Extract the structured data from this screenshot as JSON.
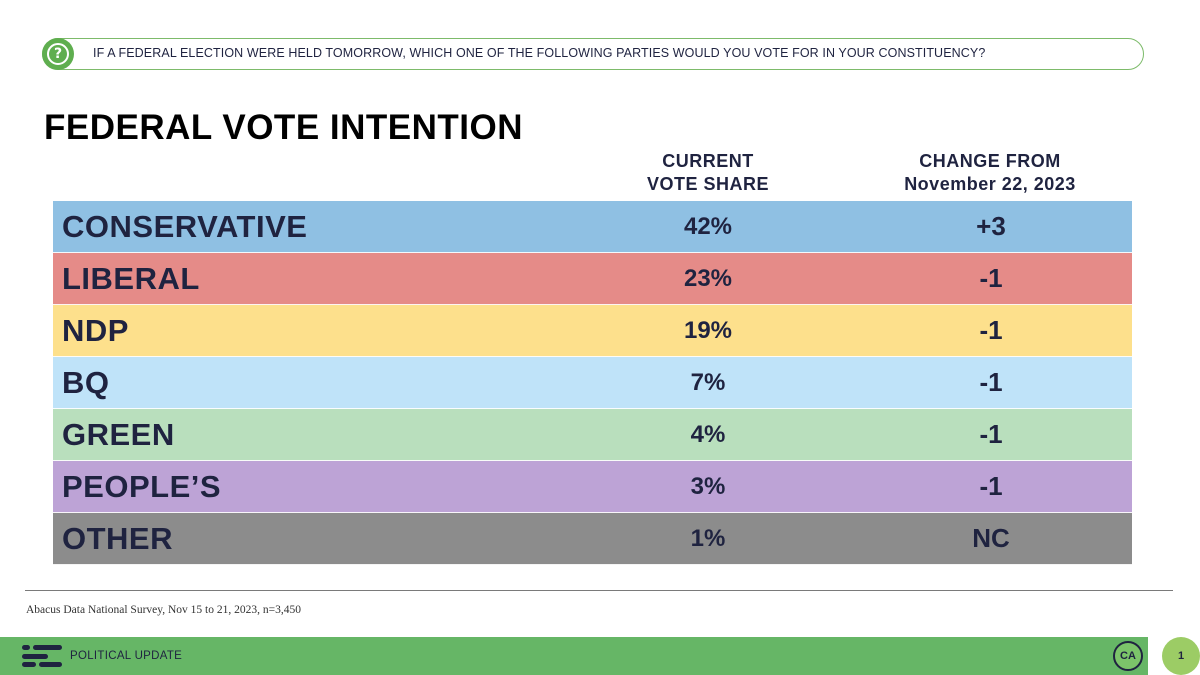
{
  "question": {
    "icon": "question-mark-icon",
    "text": "IF A FEDERAL ELECTION WERE HELD TOMORROW, WHICH ONE OF THE FOLLOWING PARTIES WOULD YOU VOTE FOR IN YOUR CONSTITUENCY?"
  },
  "title": "FEDERAL VOTE INTENTION",
  "columns": {
    "share_line1": "CURRENT",
    "share_line2": "VOTE SHARE",
    "change_line1": "CHANGE FROM",
    "change_line2": "November 22, 2023"
  },
  "chart_data": {
    "type": "table",
    "title": "FEDERAL VOTE INTENTION",
    "columns": [
      "CURRENT VOTE SHARE",
      "CHANGE FROM November 22, 2023"
    ],
    "rows": [
      {
        "party": "CONSERVATIVE",
        "share": "42%",
        "change": "+3",
        "color": "#8fc0e3"
      },
      {
        "party": "LIBERAL",
        "share": "23%",
        "change": "-1",
        "color": "#e58b88"
      },
      {
        "party": "NDP",
        "share": "19%",
        "change": "-1",
        "color": "#fde08c"
      },
      {
        "party": "BQ",
        "share": "7%",
        "change": "-1",
        "color": "#bfe3f9"
      },
      {
        "party": "GREEN",
        "share": "4%",
        "change": "-1",
        "color": "#b9dfbd"
      },
      {
        "party": "PEOPLE’S",
        "share": "3%",
        "change": "-1",
        "color": "#bda3d6"
      },
      {
        "party": "OTHER",
        "share": "1%",
        "change": "NC",
        "color": "#8c8c8c"
      }
    ]
  },
  "source": "Abacus Data National Survey, Nov 15 to 21, 2023, n=3,450",
  "footer": {
    "logo": "abacus-logo-icon",
    "label": "POLITICAL UPDATE",
    "badge": "CA",
    "page_number": "1"
  }
}
